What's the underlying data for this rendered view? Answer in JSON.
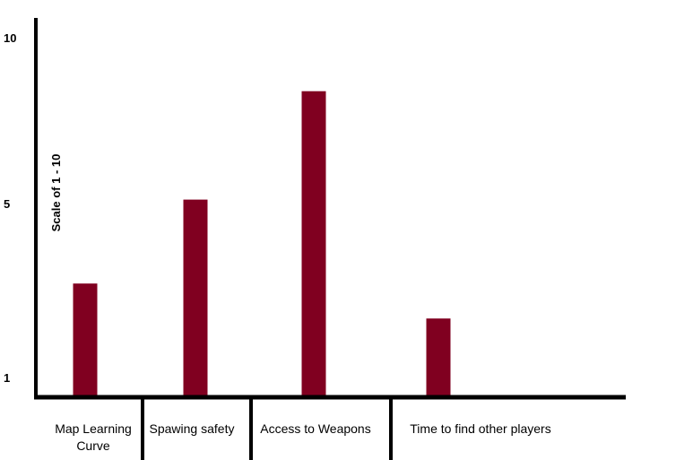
{
  "chart_data": {
    "type": "bar",
    "categories": [
      "Map Learning Curve",
      "Spawing safety",
      "Access to Weapons",
      "Time to find other players"
    ],
    "category_lines": [
      [
        "Map Learning",
        "Curve"
      ],
      [
        "Spawing safety"
      ],
      [
        "Access to Weapons"
      ],
      [
        "Time to find other players"
      ]
    ],
    "values": [
      3.7,
      6.1,
      9.2,
      2.7
    ],
    "title": "",
    "xlabel": "",
    "ylabel": "Scale of 1 - 10",
    "y_ticks": [
      "1",
      "5",
      "10"
    ],
    "ylim": [
      0.5,
      10
    ],
    "grid": false,
    "legend": "none"
  },
  "colors": {
    "bar": "#800020",
    "axis": "#000000"
  }
}
